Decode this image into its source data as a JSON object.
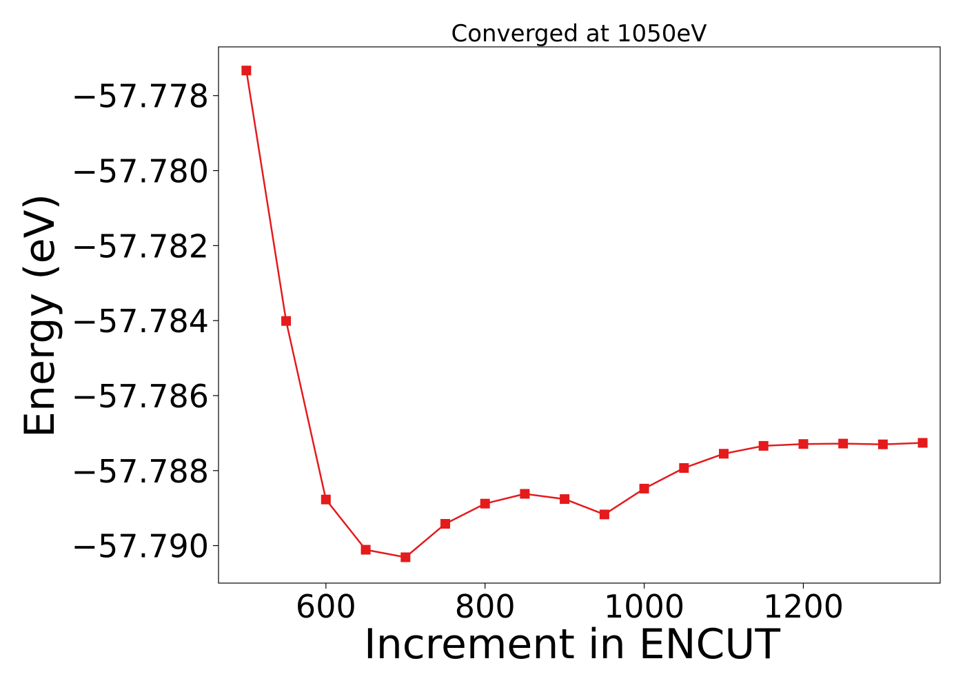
{
  "chart_data": {
    "type": "line",
    "title": "Converged at 1050eV",
    "xlabel": "Increment in ENCUT",
    "ylabel": "Energy (eV)",
    "xlim": [
      465,
      1372
    ],
    "ylim": [
      -57.791,
      -57.7767
    ],
    "grid": false,
    "legend": "none",
    "x_ticks": [
      600,
      800,
      1000,
      1200
    ],
    "x_tick_labels": [
      "600",
      "800",
      "1000",
      "1200"
    ],
    "y_ticks": [
      -57.778,
      -57.78,
      -57.782,
      -57.784,
      -57.786,
      -57.788,
      -57.79
    ],
    "y_tick_labels": [
      "−57.778",
      "−57.780",
      "−57.782",
      "−57.784",
      "−57.786",
      "−57.788",
      "−57.790"
    ],
    "series": [
      {
        "color": "#e41a1c",
        "marker": "square",
        "x": [
          500,
          550,
          600,
          650,
          700,
          750,
          800,
          850,
          900,
          950,
          1000,
          1050,
          1100,
          1150,
          1200,
          1250,
          1300,
          1350
        ],
        "y": [
          -57.77733,
          -57.78401,
          -57.78877,
          -57.79011,
          -57.79031,
          -57.78942,
          -57.78888,
          -57.78862,
          -57.78876,
          -57.78917,
          -57.78848,
          -57.78793,
          -57.78755,
          -57.78734,
          -57.78729,
          -57.78728,
          -57.7873,
          -57.78726
        ]
      }
    ]
  }
}
